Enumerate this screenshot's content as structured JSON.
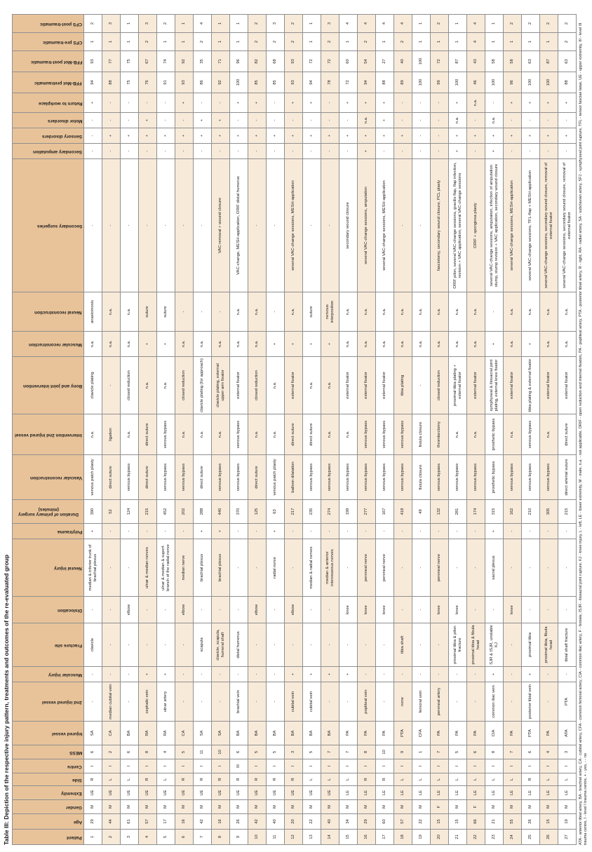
{
  "title": "Table III: Depiction of the respective injury pattern, treatments and outcomes of the re-evaluated group",
  "colors": {
    "header_bg": "#e8c39a",
    "row_stripe": "#f8ead9",
    "border_color": "#8f8f8f"
  },
  "table": {
    "columns": [
      "Patient",
      "Age",
      "Gender",
      "Extremity",
      "Side",
      "Centre",
      "MESS",
      "Injured vessel",
      "2nd injured vessel",
      "Muscular injury",
      "Fracture site",
      "Dislocation",
      "Neural injury",
      "Polytrauma",
      "Duration of primary surgery (minutes)",
      "Vascular reconstruction",
      "Intervention 2nd injured vessel",
      "Bony and joint intervention",
      "Muscular reconstruction",
      "Neural reconstruction",
      "Secondary surgeries",
      "Secondary amputation",
      "Sensory disorders",
      "Motor disorders",
      "Return to workplace",
      "FFB-Mot pretraumatic",
      "FFB-Mot post-traumatic",
      "CFS pre-traumatic",
      "CFS post-traumatic"
    ],
    "rows": [
      [
        "1",
        "29",
        "M",
        "UE",
        "R",
        "I",
        "6",
        "SA",
        "-",
        "-",
        "clavicle",
        "-",
        "median & inferior trunk of brachial plexus",
        "+",
        "390",
        "venous patch plasty",
        "n.a.",
        "clavicle plating",
        "n.a.",
        "anastomosis",
        "-",
        "-",
        "-",
        "-",
        "+",
        "94",
        "93",
        "1",
        "2"
      ],
      [
        "2",
        "44",
        "M",
        "UE",
        "L",
        "I",
        "2",
        "CA",
        "median cubital vein",
        "-",
        "-",
        "-",
        "-",
        "-",
        "52",
        "direct suture",
        "ligation",
        "-",
        "n.a.",
        "n.a.",
        "-",
        "-",
        "+",
        "-",
        "-",
        "88",
        "77",
        "1",
        "3"
      ],
      [
        "3",
        "61",
        "M",
        "UE",
        "L",
        "I",
        "6",
        "BA",
        "-",
        "-",
        "-",
        "elbow",
        "-",
        "-",
        "124",
        "venous bypass",
        "n.a.",
        "closed reduction",
        "n.a.",
        "n.a.",
        "-",
        "-",
        "+",
        "-",
        "-",
        "75",
        "75",
        "1",
        "1"
      ],
      [
        "4",
        "57",
        "M",
        "UE",
        "R",
        "I",
        "8",
        "RA",
        "cephalic vein",
        "+",
        "-",
        "-",
        "ulnar & median nerves",
        "-",
        "215",
        "direct suture",
        "direct suture",
        "n.a.",
        "+",
        "suture",
        "-",
        "-",
        "+",
        "+",
        "-",
        "76",
        "67",
        "2",
        "3"
      ],
      [
        "5",
        "17",
        "M",
        "UE",
        "L",
        "I",
        "4",
        "RA",
        "ulnar artery",
        "+",
        "-",
        "-",
        "ulnar & median & superf. branch of the radial nerve",
        "-",
        "452",
        "venous bypass",
        "venous bypass",
        "n.a.",
        "+",
        "suture",
        "-",
        "-",
        "+",
        "-",
        "-",
        "91",
        "74",
        "1",
        "2"
      ],
      [
        "6",
        "16",
        "M",
        "UE",
        "R",
        "I",
        "5",
        "CA",
        "-",
        "-",
        "-",
        "elbow",
        "median nerve",
        "-",
        "202",
        "venous bypass",
        "n.a.",
        "closed reduction",
        "n.a.",
        "-",
        "-",
        "-",
        "+",
        "-",
        "+",
        "93",
        "92",
        "1",
        "1"
      ],
      [
        "7",
        "42",
        "M",
        "UE",
        "R",
        "I",
        "11",
        "SA",
        "-",
        "-",
        "scapula",
        "-",
        "brachial plexus",
        "+",
        "288",
        "direct suture",
        "n.a.",
        "clavicle plating (for approach)",
        "n.a.",
        "-",
        "-",
        "-",
        "+",
        "+",
        "-",
        "86",
        "35",
        "2",
        "4"
      ],
      [
        "8",
        "16",
        "M",
        "UE",
        "R",
        "I",
        "10",
        "SA",
        "-",
        "-",
        "clavicle, scapula, humeral shaft",
        "-",
        "brachial plexus",
        "+",
        "440",
        "venous bypass",
        "n.a.",
        "clavicle plating, external upper arm fixator",
        "n.a.",
        "-",
        "VAC-removal + wound closure",
        "-",
        "+",
        "+",
        "-",
        "92",
        "71",
        "1",
        "1"
      ],
      [
        "9",
        "26",
        "M",
        "UE",
        "R",
        "III",
        "6",
        "BA",
        "brachial vein",
        "-",
        "distal humerus",
        "-",
        "-",
        "-",
        "370",
        "venous bypass",
        "venous bypass",
        "external fixator",
        "n.a.",
        "n.a.",
        "VAC-change, MESH-application, ORIF distal humerus",
        "-",
        "+",
        "-",
        "+",
        "100",
        "96",
        "1",
        "1"
      ],
      [
        "10",
        "42",
        "M",
        "UE",
        "R",
        "I",
        "5",
        "BA",
        "-",
        "-",
        "-",
        "elbow",
        "-",
        "-",
        "125",
        "direct suture",
        "n.a.",
        "closed reduction",
        "n.a.",
        "n.a.",
        "-",
        "-",
        "+",
        "-",
        "+",
        "85",
        "82",
        "2",
        "2"
      ],
      [
        "11",
        "40",
        "M",
        "UE",
        "R",
        "I",
        "5",
        "BA",
        "-",
        "-",
        "-",
        "-",
        "radial nerve",
        "+",
        "63",
        "venous patch plasty",
        "n.a.",
        "n.a.",
        "+",
        "-",
        "-",
        "-",
        "+",
        "-",
        "-",
        "85",
        "68",
        "2",
        "3"
      ],
      [
        "12",
        "20",
        "M",
        "UE",
        "R",
        "I",
        "3",
        "BA",
        "cubital vein",
        "+",
        "-",
        "elbow",
        "-",
        "-",
        "217",
        "balloon dilatation",
        "direct suture",
        "external fixator",
        "+",
        "n.a.",
        "several VAC-change sessions, MESH-application",
        "-",
        "+",
        "-",
        "+",
        "93",
        "93",
        "2",
        "2"
      ],
      [
        "13",
        "22",
        "M",
        "UE",
        "L",
        "I",
        "5",
        "BA",
        "cubital vein",
        "+",
        "-",
        "-",
        "median & radial nerves",
        "-",
        "235",
        "venous bypass",
        "direct suture",
        "n.a.",
        "+",
        "suture",
        "-",
        "-",
        "+",
        "-",
        "+",
        "94",
        "72",
        "1",
        "1"
      ],
      [
        "14",
        "40",
        "M",
        "UE",
        "L",
        "I",
        "7",
        "BA",
        "-",
        "+",
        "-",
        "-",
        "median & anterior interosseous nerves",
        "-",
        "274",
        "venous bypass",
        "n.a.",
        "n.a.",
        "+",
        "nervous interposition",
        "-",
        "-",
        "+",
        "-",
        "-",
        "78",
        "72",
        "2",
        "3"
      ],
      [
        "15",
        "34",
        "M",
        "LE",
        "L",
        "I",
        "7",
        "PA",
        "-",
        "+",
        "-",
        "knee",
        "-",
        "-",
        "199",
        "venous bypass",
        "n.a.",
        "external fixator",
        "n.a.",
        "n.a.",
        "secondary wound closure",
        "-",
        "+",
        "-",
        "+",
        "72",
        "60",
        "1",
        "4"
      ],
      [
        "16",
        "29",
        "M",
        "LE",
        "R",
        "I",
        "8",
        "PA",
        "popliteal vein",
        "-",
        "-",
        "knee",
        "peroneal nerve",
        "-",
        "277",
        "venous bypass",
        "venous bypass",
        "external fixator",
        "n.a.",
        "n.a.",
        "several VAC-change sessions, amputation",
        "+",
        "+",
        "n.a.",
        "+",
        "94",
        "54",
        "2",
        "4"
      ],
      [
        "17",
        "60",
        "M",
        "LE",
        "R",
        "I",
        "10",
        "PA",
        "-",
        "-",
        "-",
        "knee",
        "peroneal nerve",
        "-",
        "167",
        "venous bypass",
        "venous bypass",
        "external fixator",
        "n.a.",
        "n.a.",
        "several VAC-change sessions, MESH-application",
        "-",
        "+",
        "+",
        "+",
        "88",
        "27",
        "1",
        "4"
      ],
      [
        "18",
        "57",
        "M",
        "LE",
        "L",
        "I",
        "9",
        "PTA",
        "none",
        "-",
        "tibia shaft",
        "-",
        "-",
        "-",
        "418",
        "venous bypass",
        "venous bypass",
        "tibia plating",
        "n.a.",
        "n.a.",
        "-",
        "-",
        "+",
        "-",
        "-",
        "89",
        "40",
        "2",
        "4"
      ],
      [
        "19",
        "22",
        "M",
        "LE",
        "L",
        "I",
        "1",
        "CFA",
        "femoral vein",
        "-",
        "-",
        "-",
        "-",
        "-",
        "49",
        "fistula closure",
        "fistula closure",
        "-",
        "n.a.",
        "n.a.",
        "-",
        "-",
        "-",
        "-",
        "-",
        "100",
        "100",
        "1",
        "1"
      ],
      [
        "20",
        "15",
        "F",
        "LE",
        "L",
        "I",
        "7",
        "PA",
        "peroneal artery",
        "-",
        "-",
        "knee",
        "peroneal nerve",
        "-",
        "132",
        "venous bypass",
        "thrombectomy",
        "closed reduction",
        "n.a.",
        "n.a.",
        "fasciotomy, secondary wound closure, PCL plasty",
        "-",
        "-",
        "-",
        "-",
        "99",
        "72",
        "1",
        "2"
      ],
      [
        "21",
        "15",
        "M",
        "LE",
        "L",
        "I",
        "5",
        "PA",
        "-",
        "-",
        "proximal tibia & pilon fracture",
        "knee",
        "-",
        "-",
        "281",
        "venous bypass",
        "n.a.",
        "proximal tibia plating + external fixator",
        "n.a.",
        "n.a.",
        "ORIF pilon, several VAC-change sessions, gracilis flap, flap infection, revision + VAC application, several VAC-change sessions",
        "+",
        "+",
        "n.a.",
        "+",
        "100",
        "87",
        "1",
        "1"
      ],
      [
        "22",
        "66",
        "F",
        "LE",
        "L",
        "I",
        "6",
        "PA",
        "-",
        "-",
        "proximal tibia & fibula head",
        "-",
        "-",
        "-",
        "174",
        "venous bypass",
        "n.a.",
        "external fixator",
        "n.a.",
        "n.a.",
        "ORIF + spongiosa plasty",
        "-",
        "+",
        "-",
        "n.a.",
        "46",
        "43",
        "4",
        "4"
      ],
      [
        "23",
        "21",
        "M",
        "LE",
        "L",
        "I",
        "8",
        "CIA",
        "common iliac vein",
        "+",
        "SJR & ISJR, unstable KJ",
        "-",
        "sacral plexus",
        "+",
        "315",
        "prosthetic bypass",
        "prosthetic bypass",
        "symphyseal & iliosacral joint plating, external knee fixator",
        "+",
        "-",
        "several VAC-change sessions, amputation, infection of amputation stump, stump revision + VAC application, secondary wound closure",
        "+",
        "+",
        "n.a.",
        "-",
        "100",
        "58",
        "1",
        "1"
      ],
      [
        "24",
        "55",
        "M",
        "LE",
        "L",
        "I",
        "7",
        "PA",
        "-",
        "-",
        "-",
        "knee",
        "-",
        "-",
        "162",
        "venous bypass",
        "n.a.",
        "external fixator",
        "n.a.",
        "n.a.",
        "several VAC-change sessions, MESH-application",
        "-",
        "+",
        "-",
        "+",
        "96",
        "58",
        "1",
        "2"
      ],
      [
        "25",
        "26",
        "M",
        "LE",
        "R",
        "I",
        "6",
        "PTA",
        "posterior tibial vein",
        "+",
        "proximal tibia",
        "-",
        "-",
        "-",
        "210",
        "venous bypass",
        "venous bypass",
        "tibia plating & external fixator",
        "+",
        "n.a.",
        "several VAC-change sessions, TFL-flap + MESH-application",
        "-",
        "+",
        "-",
        "+",
        "100",
        "63",
        "1",
        "2"
      ],
      [
        "26",
        "15",
        "M",
        "LE",
        "L",
        "I",
        "4",
        "PA",
        "-",
        "-",
        "proximal tibia, fibula head",
        "-",
        "-",
        "-",
        "305",
        "venous bypass",
        "n.a.",
        "external fixator",
        "n.a.",
        "n.a.",
        "several VAC-change sessions, secondary wound closure, removal of external fixator",
        "-",
        "+",
        "-",
        "+",
        "100",
        "87",
        "1",
        "2"
      ],
      [
        "27",
        "19",
        "M",
        "LE",
        "L",
        "I",
        "3",
        "ATA",
        "PTA",
        "-",
        "tibial shaft fracture",
        "-",
        "-",
        "-",
        "215",
        "direct arterial suture",
        "direct suture",
        "external fixator",
        "n.a.",
        "n.a.",
        "several VAC-change sessions, secondary wound closure, removal of external fixator",
        "-",
        "+",
        "-",
        "+",
        "88",
        "63",
        "2",
        "2"
      ]
    ]
  },
  "footnote": "ATA - anterior tibial artery, BA - brachial artery, CA - cubital artery, CFA - common femoral artery, CIA - common iliac artery, F - female, ISJR - iliosacral joint rupture, KJ - knee injury, L - left, LE - lower extremity, M - male, n.a. - not applicable, ORIF - open reduction and internal fixation, PA - popliteal artery, PTA - posterior tibial artery, R - right, RA - radial artery, SA - subclavian artery, SFJ - symphyseal joint rupture, TFL - tensor fasciae latae, UE - upper extremity, III - level III trauma centre, I - level I trauma centre, + - yes, - - no"
}
